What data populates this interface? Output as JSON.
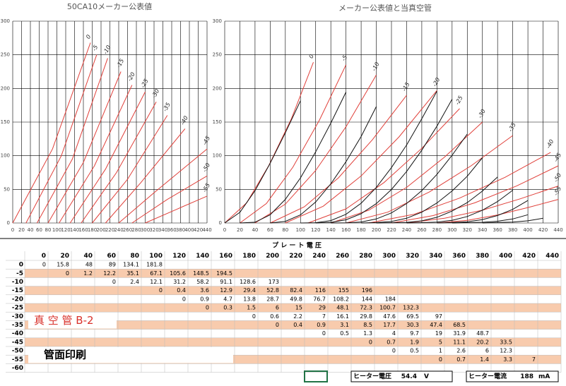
{
  "chart_data": [
    {
      "type": "line",
      "title": "50CA10メーカー公表値",
      "xlim": [
        0,
        440
      ],
      "ylim": [
        0,
        300
      ],
      "xticks": [
        0,
        20,
        40,
        60,
        80,
        100,
        120,
        140,
        160,
        180,
        200,
        220,
        240,
        260,
        280,
        300,
        320,
        340,
        360,
        380,
        400,
        420,
        440
      ],
      "yticks": [
        0,
        50,
        100,
        150,
        200,
        250,
        300
      ],
      "grid": true,
      "series": [
        {
          "name": "0",
          "color": "#e0403a",
          "x": [
            0,
            90,
            176
          ],
          "values": [
            0,
            110,
            268
          ]
        },
        {
          "name": "-5",
          "color": "#e0403a",
          "x": [
            30,
            110,
            190
          ],
          "values": [
            0,
            100,
            250
          ]
        },
        {
          "name": "-10",
          "color": "#e0403a",
          "x": [
            55,
            135,
            215
          ],
          "values": [
            0,
            95,
            245
          ]
        },
        {
          "name": "-15",
          "color": "#e0403a",
          "x": [
            80,
            160,
            245
          ],
          "values": [
            0,
            90,
            225
          ]
        },
        {
          "name": "-20",
          "color": "#e0403a",
          "x": [
            105,
            185,
            270
          ],
          "values": [
            0,
            85,
            205
          ]
        },
        {
          "name": "-25",
          "color": "#e0403a",
          "x": [
            130,
            210,
            300
          ],
          "values": [
            0,
            80,
            195
          ]
        },
        {
          "name": "-30",
          "color": "#e0403a",
          "x": [
            155,
            235,
            325
          ],
          "values": [
            0,
            75,
            180
          ]
        },
        {
          "name": "-35",
          "color": "#e0403a",
          "x": [
            180,
            260,
            350
          ],
          "values": [
            0,
            65,
            160
          ]
        },
        {
          "name": "-40",
          "color": "#e0403a",
          "x": [
            210,
            290,
            390
          ],
          "values": [
            0,
            60,
            140
          ]
        },
        {
          "name": "-45",
          "color": "#e0403a",
          "x": [
            240,
            320,
            440
          ],
          "values": [
            0,
            45,
            110
          ]
        },
        {
          "name": "-50",
          "color": "#e0403a",
          "x": [
            270,
            350,
            440
          ],
          "values": [
            0,
            35,
            70
          ]
        },
        {
          "name": "-55",
          "color": "#e0403a",
          "x": [
            300,
            370,
            440
          ],
          "values": [
            0,
            20,
            40
          ]
        }
      ]
    },
    {
      "type": "line",
      "title": "メーカー公表値と当真空管",
      "xlim": [
        0,
        440
      ],
      "ylim": [
        0,
        300
      ],
      "xticks": [
        0,
        20,
        40,
        60,
        80,
        100,
        120,
        140,
        160,
        180,
        200,
        220,
        240,
        260,
        280,
        300,
        320,
        340,
        360,
        380,
        400,
        420,
        440
      ],
      "yticks": [
        0,
        50,
        100,
        150,
        200,
        250,
        300
      ],
      "grid": true,
      "x": [
        0,
        20,
        40,
        60,
        80,
        100,
        120,
        140,
        160,
        180,
        200,
        220,
        240,
        260,
        280,
        300,
        320,
        340,
        360,
        380,
        400,
        420,
        440
      ],
      "series": [
        {
          "name": "0",
          "color": "#e0403a",
          "x": [
            0,
            29,
            58,
            88,
            117
          ],
          "values": [
            0,
            30,
            85,
            155,
            239
          ]
        },
        {
          "name": "-5",
          "color": "#e0403a",
          "x": [
            20,
            55,
            90,
            125,
            160
          ],
          "values": [
            0,
            29,
            83,
            153,
            235
          ]
        },
        {
          "name": "-10",
          "color": "#e0403a",
          "x": [
            40,
            80,
            120,
            160,
            200
          ],
          "values": [
            0,
            28,
            78,
            143,
            220
          ]
        },
        {
          "name": "-15",
          "color": "#e0403a",
          "x": [
            60,
            105,
            150,
            195,
            240
          ],
          "values": [
            0,
            24,
            67,
            124,
            190
          ]
        },
        {
          "name": "-20",
          "color": "#e0403a",
          "x": [
            80,
            130,
            180,
            230,
            280
          ],
          "values": [
            0,
            25,
            70,
            128,
            197
          ]
        },
        {
          "name": "-25",
          "color": "#e0403a",
          "x": [
            110,
            160,
            210,
            260,
            310
          ],
          "values": [
            0,
            21,
            60,
            111,
            170
          ]
        },
        {
          "name": "-30",
          "color": "#e0403a",
          "x": [
            140,
            190,
            240,
            290,
            340
          ],
          "values": [
            0,
            19,
            53,
            98,
            150
          ]
        },
        {
          "name": "-35",
          "color": "#e0403a",
          "x": [
            160,
            215,
            270,
            325,
            380
          ],
          "values": [
            0,
            16,
            46,
            85,
            130
          ]
        },
        {
          "name": "-40",
          "color": "#e0403a",
          "x": [
            190,
            250,
            310,
            370,
            430
          ],
          "values": [
            0,
            13,
            37,
            68,
            105
          ]
        },
        {
          "name": "-45",
          "color": "#e0403a",
          "x": [
            220,
            275,
            330,
            385,
            440
          ],
          "values": [
            0,
            11,
            30,
            55,
            85
          ]
        },
        {
          "name": "-50",
          "color": "#e0403a",
          "x": [
            240,
            290,
            340,
            390,
            440
          ],
          "values": [
            0,
            7,
            19,
            36,
            55
          ]
        },
        {
          "name": "-55",
          "color": "#e0403a",
          "x": [
            280,
            320,
            360,
            400,
            440
          ],
          "values": [
            0,
            4,
            12,
            23,
            35
          ]
        },
        {
          "color": "#111111",
          "values": [
            0,
            15.8,
            48,
            89,
            134.1,
            181.8,
            null,
            null,
            null,
            null,
            null,
            null,
            null,
            null,
            null,
            null,
            null,
            null,
            null,
            null,
            null,
            null,
            null
          ]
        },
        {
          "color": "#111111",
          "values": [
            null,
            0,
            1.2,
            12.2,
            35.1,
            67.1,
            105.6,
            148.5,
            194.5,
            null,
            null,
            null,
            null,
            null,
            null,
            null,
            null,
            null,
            null,
            null,
            null,
            null,
            null
          ]
        },
        {
          "color": "#111111",
          "values": [
            null,
            null,
            null,
            0,
            2.4,
            12.1,
            31.2,
            58.2,
            91.1,
            128.6,
            173,
            null,
            null,
            null,
            null,
            null,
            null,
            null,
            null,
            null,
            null,
            null,
            null
          ]
        },
        {
          "color": "#111111",
          "values": [
            null,
            null,
            null,
            null,
            null,
            0,
            0.4,
            3.6,
            12.9,
            29.4,
            52.8,
            82.4,
            116,
            155,
            196,
            null,
            null,
            null,
            null,
            null,
            null,
            null,
            null
          ]
        },
        {
          "color": "#111111",
          "values": [
            null,
            null,
            null,
            null,
            null,
            null,
            0,
            0.9,
            4.7,
            13.8,
            28.7,
            49.8,
            76.7,
            108.2,
            144,
            184,
            null,
            null,
            null,
            null,
            null,
            null,
            null
          ]
        },
        {
          "color": "#111111",
          "values": [
            null,
            null,
            null,
            null,
            null,
            null,
            null,
            0,
            0.3,
            1.5,
            6,
            15,
            29,
            48.1,
            72.3,
            100.7,
            132.3,
            null,
            null,
            null,
            null,
            null,
            null
          ]
        },
        {
          "color": "#111111",
          "values": [
            null,
            null,
            null,
            null,
            null,
            null,
            null,
            null,
            null,
            0,
            0.6,
            2.2,
            7,
            16.1,
            29.8,
            47.6,
            69.5,
            97,
            null,
            null,
            null,
            null,
            null
          ]
        },
        {
          "color": "#111111",
          "values": [
            null,
            null,
            null,
            null,
            null,
            null,
            null,
            null,
            null,
            null,
            0,
            0.4,
            0.9,
            3.1,
            8.5,
            17.7,
            30.3,
            47.4,
            68.5,
            null,
            null,
            null,
            null
          ]
        },
        {
          "color": "#111111",
          "values": [
            null,
            null,
            null,
            null,
            null,
            null,
            null,
            null,
            null,
            null,
            null,
            null,
            0,
            0.5,
            1.3,
            4,
            9.7,
            19,
            31.9,
            48.7,
            null,
            null,
            null
          ]
        },
        {
          "color": "#111111",
          "values": [
            null,
            null,
            null,
            null,
            null,
            null,
            null,
            null,
            null,
            null,
            null,
            null,
            null,
            null,
            0,
            0.7,
            1.9,
            5,
            11.1,
            20.2,
            33.5,
            null,
            null
          ]
        },
        {
          "color": "#111111",
          "values": [
            null,
            null,
            null,
            null,
            null,
            null,
            null,
            null,
            null,
            null,
            null,
            null,
            null,
            null,
            null,
            0,
            0.5,
            1,
            2.6,
            6,
            12.3,
            null,
            null
          ]
        },
        {
          "color": "#111111",
          "values": [
            null,
            null,
            null,
            null,
            null,
            null,
            null,
            null,
            null,
            null,
            null,
            null,
            null,
            null,
            null,
            null,
            null,
            0,
            0.7,
            1.4,
            3.3,
            7,
            null
          ]
        }
      ]
    }
  ],
  "table": {
    "title": "プ レ ー ト 電 圧",
    "row_labels": [
      "0",
      "-5",
      "-10",
      "-15",
      "-20",
      "-25",
      "-30",
      "-35",
      "-40",
      "-45",
      "-50",
      "-55",
      "-60"
    ],
    "tube_label": "真 空 管 B-2",
    "print_label": "管面印刷"
  },
  "footer": {
    "heater_voltage_label": "ヒーター電圧",
    "heater_voltage": 54.4,
    "heater_voltage_unit": "V",
    "heater_current_label": "ヒーター電流",
    "heater_current": 188,
    "heater_current_unit": "mA"
  }
}
